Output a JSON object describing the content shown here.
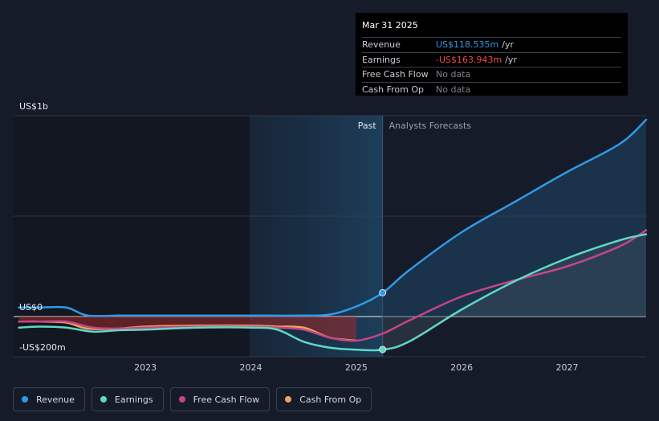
{
  "tooltip": {
    "date": "Mar 31 2025",
    "rows": [
      {
        "label": "Revenue",
        "value": "US$118.535m",
        "unit": "/yr"
      },
      {
        "label": "Earnings",
        "value": "-US$163.943m",
        "unit": "/yr"
      },
      {
        "label": "Free Cash Flow",
        "value": "No data",
        "unit": ""
      },
      {
        "label": "Cash From Op",
        "value": "No data",
        "unit": ""
      }
    ]
  },
  "legend": [
    {
      "label": "Revenue",
      "color": "#2f9ae6"
    },
    {
      "label": "Earnings",
      "color": "#5fd9c4"
    },
    {
      "label": "Free Cash Flow",
      "color": "#c64589"
    },
    {
      "label": "Cash From Op",
      "color": "#e8a85c"
    }
  ],
  "chart_data": {
    "type": "line",
    "ylabels": [
      "US$1b",
      "US$0",
      "-US$200m"
    ],
    "xticks": [
      "2023",
      "2024",
      "2025",
      "2026",
      "2027"
    ],
    "xtick_values": [
      2023,
      2024,
      2025,
      2026,
      2027
    ],
    "xlim": [
      2021.75,
      2027.75
    ],
    "ylim": [
      -200,
      1000
    ],
    "divider_x": 2025.25,
    "past_label": "Past",
    "forecast_label": "Analysts Forecasts",
    "highlight_x": 118.535,
    "series": [
      {
        "name": "Revenue",
        "color": "#2f9ae6",
        "points": [
          [
            2021.8,
            45
          ],
          [
            2022.0,
            45
          ],
          [
            2022.25,
            45
          ],
          [
            2022.45,
            5
          ],
          [
            2022.75,
            5
          ],
          [
            2023.0,
            5
          ],
          [
            2023.5,
            5
          ],
          [
            2024.0,
            5
          ],
          [
            2024.5,
            5
          ],
          [
            2024.75,
            10
          ],
          [
            2025.0,
            50
          ],
          [
            2025.25,
            118
          ],
          [
            2025.5,
            230
          ],
          [
            2026.0,
            420
          ],
          [
            2026.5,
            570
          ],
          [
            2027.0,
            720
          ],
          [
            2027.5,
            860
          ],
          [
            2027.75,
            980
          ]
        ]
      },
      {
        "name": "Earnings",
        "color": "#5fd9c4",
        "points": [
          [
            2021.8,
            -55
          ],
          [
            2022.0,
            -50
          ],
          [
            2022.25,
            -55
          ],
          [
            2022.5,
            -75
          ],
          [
            2022.75,
            -68
          ],
          [
            2023.0,
            -65
          ],
          [
            2023.5,
            -55
          ],
          [
            2024.0,
            -55
          ],
          [
            2024.25,
            -65
          ],
          [
            2024.5,
            -125
          ],
          [
            2024.75,
            -155
          ],
          [
            2025.0,
            -165
          ],
          [
            2025.25,
            -165
          ],
          [
            2025.5,
            -125
          ],
          [
            2026.0,
            35
          ],
          [
            2026.5,
            175
          ],
          [
            2027.0,
            290
          ],
          [
            2027.5,
            380
          ],
          [
            2027.75,
            410
          ]
        ]
      },
      {
        "name": "Free Cash Flow",
        "color": "#c64589",
        "points": [
          [
            2021.8,
            -25
          ],
          [
            2022.0,
            -25
          ],
          [
            2022.25,
            -25
          ],
          [
            2022.5,
            -55
          ],
          [
            2022.75,
            -60
          ],
          [
            2023.0,
            -55
          ],
          [
            2023.5,
            -50
          ],
          [
            2024.0,
            -50
          ],
          [
            2024.25,
            -55
          ],
          [
            2024.5,
            -65
          ],
          [
            2024.75,
            -105
          ],
          [
            2025.0,
            -120
          ],
          [
            2025.25,
            -85
          ],
          [
            2025.5,
            -20
          ],
          [
            2026.0,
            100
          ],
          [
            2026.5,
            180
          ],
          [
            2027.0,
            250
          ],
          [
            2027.5,
            350
          ],
          [
            2027.75,
            430
          ]
        ]
      },
      {
        "name": "Cash From Op",
        "color": "#e8a85c",
        "points": [
          [
            2021.8,
            -25
          ],
          [
            2022.0,
            -25
          ],
          [
            2022.25,
            -30
          ],
          [
            2022.45,
            -60
          ],
          [
            2022.75,
            -60
          ],
          [
            2023.0,
            -50
          ],
          [
            2023.5,
            -45
          ],
          [
            2024.0,
            -45
          ],
          [
            2024.25,
            -50
          ],
          [
            2024.5,
            -55
          ],
          [
            2024.75,
            -105
          ],
          [
            2025.0,
            -120
          ]
        ]
      }
    ]
  }
}
